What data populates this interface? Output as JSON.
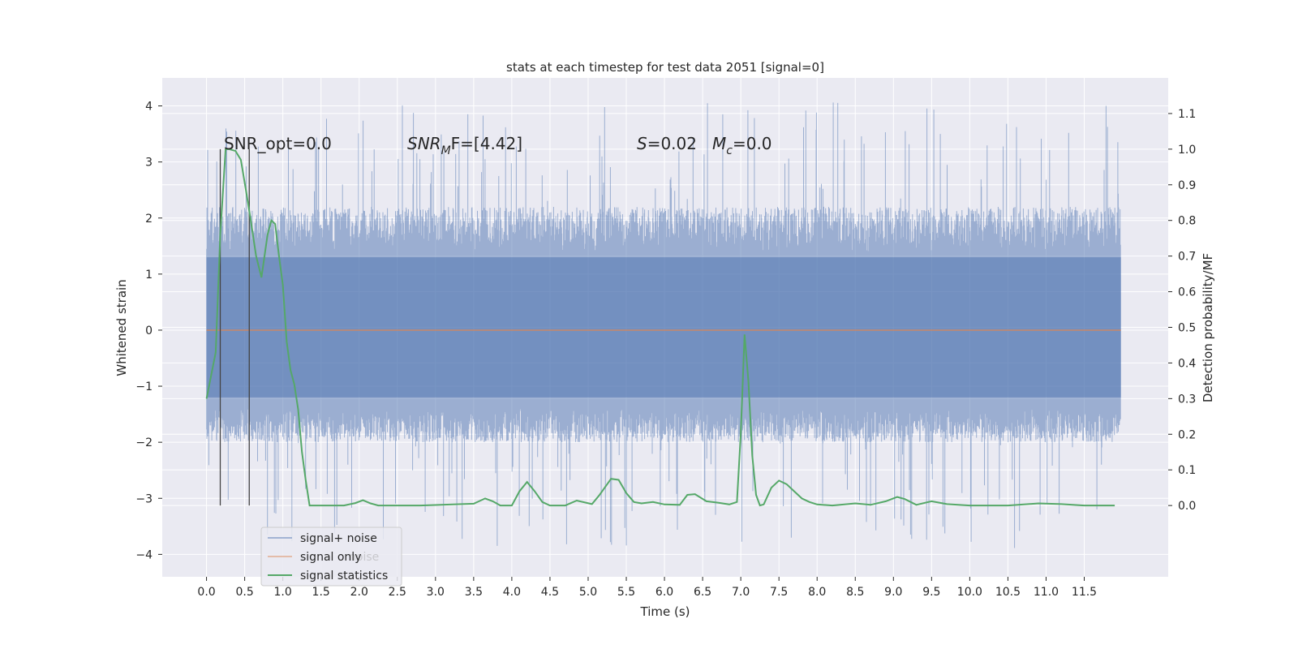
{
  "chart_data": {
    "type": "line",
    "title": "stats at each timestep for test data 2051 [signal=0]",
    "xlabel": "Time (s)",
    "ylabel": "Whitened strain",
    "y2label": "Detection probability/MF",
    "xlim": [
      -0.58,
      12.6
    ],
    "ylim": [
      -4.4,
      4.5
    ],
    "y2lim": [
      -0.2,
      1.2
    ],
    "xticks": [
      "0.0",
      "0.5",
      "1.0",
      "1.5",
      "2.0",
      "2.5",
      "3.0",
      "3.5",
      "4.0",
      "4.5",
      "5.0",
      "5.5",
      "6.0",
      "6.5",
      "7.0",
      "7.5",
      "8.0",
      "8.5",
      "9.0",
      "9.5",
      "10.0",
      "10.5",
      "11.0",
      "11.5"
    ],
    "yticks": [
      "4",
      "3",
      "2",
      "1",
      "0",
      "−1",
      "−2",
      "−3",
      "−4"
    ],
    "y2ticks": [
      "1.1",
      "1.0",
      "0.9",
      "0.8",
      "0.7",
      "0.6",
      "0.5",
      "0.4",
      "0.3",
      "0.2",
      "0.1",
      "0.0"
    ],
    "grid": true,
    "legend_position": "lower-left",
    "annotations": {
      "snr_opt": "SNR_opt=0.0",
      "snr_mf_sym": "SNR",
      "snr_mf_sub": "M",
      "snr_mf_rest": "F=[4.42]",
      "s_sym": "S",
      "s_val": "=0.02",
      "mc_sym": "M",
      "mc_sub": "c",
      "mc_val": "=0.0"
    },
    "vertical_markers_x": [
      0.18,
      0.56
    ],
    "series": [
      {
        "name": "signal+ noise",
        "color": "#4c72b0",
        "note_envelope": "noise band; x from 0.0 to 11.98",
        "x_range": [
          0.0,
          11.98
        ],
        "band_core": [
          -1.2,
          1.3
        ],
        "band_wide": [
          -2.0,
          2.2
        ],
        "spike_max": [
          -3.9,
          4.1
        ]
      },
      {
        "name": "signal only",
        "color": "#dd8452",
        "x": [
          0.0,
          11.98
        ],
        "y": [
          0.0,
          0.0
        ]
      },
      {
        "name": "signal statistics",
        "color": "#55a868",
        "x": [
          0.0,
          0.12,
          0.18,
          0.25,
          0.3,
          0.38,
          0.45,
          0.52,
          0.58,
          0.65,
          0.72,
          0.8,
          0.85,
          0.9,
          0.95,
          1.0,
          1.05,
          1.1,
          1.15,
          1.2,
          1.25,
          1.3,
          1.35,
          1.4,
          1.45,
          1.5,
          1.6,
          1.8,
          1.95,
          2.05,
          2.15,
          2.25,
          2.4,
          2.8,
          3.5,
          3.65,
          3.75,
          3.85,
          4.0,
          4.1,
          4.2,
          4.3,
          4.4,
          4.5,
          4.7,
          4.85,
          5.05,
          5.15,
          5.3,
          5.4,
          5.5,
          5.6,
          5.7,
          5.85,
          6.0,
          6.2,
          6.3,
          6.4,
          6.55,
          6.7,
          6.85,
          6.95,
          7.0,
          7.05,
          7.1,
          7.15,
          7.2,
          7.25,
          7.3,
          7.4,
          7.5,
          7.6,
          7.7,
          7.8,
          7.9,
          8.0,
          8.2,
          8.5,
          8.7,
          8.9,
          9.05,
          9.15,
          9.3,
          9.5,
          9.7,
          10.0,
          10.5,
          10.9,
          11.2,
          11.5,
          11.9
        ],
        "y": [
          0.3,
          0.43,
          0.76,
          1.0,
          1.0,
          0.995,
          0.97,
          0.88,
          0.8,
          0.7,
          0.64,
          0.76,
          0.8,
          0.79,
          0.7,
          0.62,
          0.46,
          0.38,
          0.34,
          0.27,
          0.15,
          0.07,
          0.0,
          0.0,
          0.0,
          0.0,
          0.0,
          0.0,
          0.007,
          0.015,
          0.006,
          0.0,
          0.0,
          0.0,
          0.005,
          0.02,
          0.012,
          0.0,
          0.0,
          0.04,
          0.066,
          0.04,
          0.01,
          0.0,
          0.0,
          0.014,
          0.004,
          0.03,
          0.075,
          0.072,
          0.035,
          0.01,
          0.006,
          0.01,
          0.003,
          0.002,
          0.03,
          0.032,
          0.012,
          0.008,
          0.003,
          0.01,
          0.2,
          0.48,
          0.35,
          0.14,
          0.03,
          0.0,
          0.003,
          0.05,
          0.07,
          0.06,
          0.04,
          0.02,
          0.01,
          0.003,
          0.0,
          0.006,
          0.002,
          0.012,
          0.024,
          0.018,
          0.002,
          0.012,
          0.004,
          0.0,
          0.0,
          0.006,
          0.004,
          0.0,
          0.0
        ]
      }
    ],
    "legend": {
      "entries": [
        "signal+ noise",
        "signal only",
        "signal statistics"
      ],
      "overlapped_text": "noise"
    }
  }
}
